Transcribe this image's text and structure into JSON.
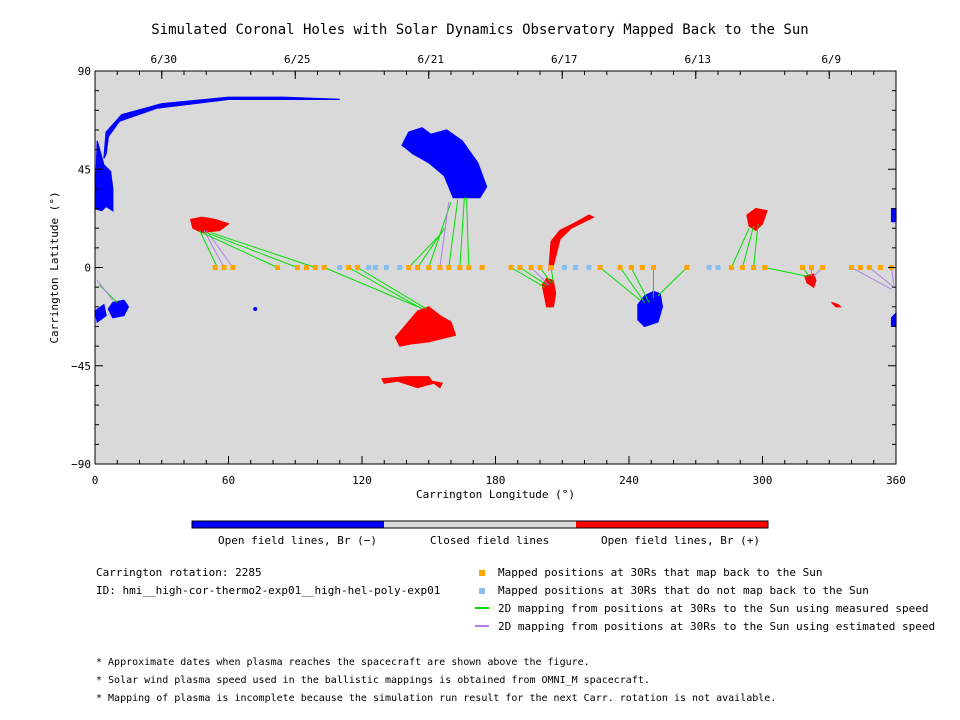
{
  "chart_data": {
    "type": "scatter",
    "title": "Simulated Coronal Holes with Solar Dynamics Observatory Mapped Back to the Sun",
    "xlabel": "Carrington Longitude (°)",
    "ylabel": "Carrington Latitude (°)",
    "xlim": [
      0,
      360
    ],
    "ylim": [
      -90,
      90
    ],
    "x_ticks": [
      "0",
      "60",
      "120",
      "180",
      "240",
      "300",
      "360"
    ],
    "y_ticks": [
      "90",
      "45",
      "0",
      "-45",
      "-90"
    ],
    "top_axis_dates": [
      {
        "label": "6/30",
        "x": 30
      },
      {
        "label": "6/25",
        "x": 90
      },
      {
        "label": "6/21",
        "x": 150
      },
      {
        "label": "6/17",
        "x": 210
      },
      {
        "label": "6/13",
        "x": 270
      },
      {
        "label": "6/9",
        "x": 330
      }
    ],
    "background_color": "#d9d9d9",
    "colors": {
      "open_negative": "#0000ff",
      "open_positive": "#ff0000",
      "closed": "#d9d9d9",
      "mapped_back": "#ffa500",
      "not_mapped": "#87bef0",
      "measured_speed": "#00e000",
      "estimated_speed": "#b080e8"
    },
    "coronal_holes": [
      {
        "polarity": "negative",
        "lon": 2,
        "lat": 40
      },
      {
        "polarity": "negative",
        "lon": 60,
        "lat": 78
      },
      {
        "polarity": "negative",
        "lon": 152,
        "lat": 52
      },
      {
        "polarity": "negative",
        "lon": 11,
        "lat": -19
      },
      {
        "polarity": "negative",
        "lon": 249,
        "lat": -20
      },
      {
        "polarity": "negative",
        "lon": 359,
        "lat": 24
      },
      {
        "polarity": "negative",
        "lon": 359,
        "lat": -24
      },
      {
        "polarity": "positive",
        "lon": 50,
        "lat": 19
      },
      {
        "polarity": "positive",
        "lon": 148,
        "lat": -27
      },
      {
        "polarity": "positive",
        "lon": 145,
        "lat": -52
      },
      {
        "polarity": "positive",
        "lon": 204,
        "lat": -13
      },
      {
        "polarity": "positive",
        "lon": 214,
        "lat": 14
      },
      {
        "polarity": "positive",
        "lon": 296,
        "lat": 22
      },
      {
        "polarity": "positive",
        "lon": 322,
        "lat": -6
      },
      {
        "polarity": "positive",
        "lon": 333,
        "lat": -17
      }
    ],
    "mapped_positions": [
      {
        "lon": 54,
        "mapped": true
      },
      {
        "lon": 58,
        "mapped": true
      },
      {
        "lon": 62,
        "mapped": true
      },
      {
        "lon": 82,
        "mapped": true
      },
      {
        "lon": 91,
        "mapped": true
      },
      {
        "lon": 95,
        "mapped": true
      },
      {
        "lon": 99,
        "mapped": true
      },
      {
        "lon": 103,
        "mapped": true
      },
      {
        "lon": 110,
        "mapped": false
      },
      {
        "lon": 114,
        "mapped": true
      },
      {
        "lon": 118,
        "mapped": true
      },
      {
        "lon": 123,
        "mapped": false
      },
      {
        "lon": 126,
        "mapped": false
      },
      {
        "lon": 131,
        "mapped": false
      },
      {
        "lon": 137,
        "mapped": false
      },
      {
        "lon": 141,
        "mapped": true
      },
      {
        "lon": 145,
        "mapped": true
      },
      {
        "lon": 150,
        "mapped": true
      },
      {
        "lon": 155,
        "mapped": true
      },
      {
        "lon": 159,
        "mapped": true
      },
      {
        "lon": 164,
        "mapped": true
      },
      {
        "lon": 168,
        "mapped": true
      },
      {
        "lon": 174,
        "mapped": true
      },
      {
        "lon": 187,
        "mapped": true
      },
      {
        "lon": 191,
        "mapped": true
      },
      {
        "lon": 196,
        "mapped": true
      },
      {
        "lon": 200,
        "mapped": true
      },
      {
        "lon": 205,
        "mapped": true
      },
      {
        "lon": 211,
        "mapped": false
      },
      {
        "lon": 216,
        "mapped": false
      },
      {
        "lon": 222,
        "mapped": false
      },
      {
        "lon": 227,
        "mapped": true
      },
      {
        "lon": 236,
        "mapped": true
      },
      {
        "lon": 241,
        "mapped": true
      },
      {
        "lon": 246,
        "mapped": true
      },
      {
        "lon": 251,
        "mapped": true
      },
      {
        "lon": 266,
        "mapped": true
      },
      {
        "lon": 276,
        "mapped": false
      },
      {
        "lon": 280,
        "mapped": false
      },
      {
        "lon": 286,
        "mapped": true
      },
      {
        "lon": 291,
        "mapped": true
      },
      {
        "lon": 296,
        "mapped": true
      },
      {
        "lon": 301,
        "mapped": true
      },
      {
        "lon": 318,
        "mapped": true
      },
      {
        "lon": 322,
        "mapped": true
      },
      {
        "lon": 327,
        "mapped": true
      },
      {
        "lon": 340,
        "mapped": true
      },
      {
        "lon": 344,
        "mapped": true
      },
      {
        "lon": 348,
        "mapped": true
      },
      {
        "lon": 353,
        "mapped": true
      },
      {
        "lon": 358,
        "mapped": true
      }
    ],
    "mappings": [
      {
        "from": [
          55,
          0
        ],
        "to": [
          47,
          17
        ],
        "speed": "measured"
      },
      {
        "from": [
          58,
          0
        ],
        "to": [
          49,
          17
        ],
        "speed": "estimated"
      },
      {
        "from": [
          62,
          0
        ],
        "to": [
          50,
          17
        ],
        "speed": "estimated"
      },
      {
        "from": [
          82,
          0
        ],
        "to": [
          48,
          16
        ],
        "speed": "measured"
      },
      {
        "from": [
          91,
          0
        ],
        "to": [
          50,
          16
        ],
        "speed": "measured"
      },
      {
        "from": [
          99,
          0
        ],
        "to": [
          52,
          16
        ],
        "speed": "measured"
      },
      {
        "from": [
          103,
          0
        ],
        "to": [
          145,
          -18
        ],
        "speed": "measured"
      },
      {
        "from": [
          114,
          0
        ],
        "to": [
          147,
          -19
        ],
        "speed": "measured"
      },
      {
        "from": [
          118,
          0
        ],
        "to": [
          149,
          -19
        ],
        "speed": "measured"
      },
      {
        "from": [
          141,
          0
        ],
        "to": [
          156,
          16
        ],
        "speed": "measured"
      },
      {
        "from": [
          145,
          0
        ],
        "to": [
          157,
          18
        ],
        "speed": "measured"
      },
      {
        "from": [
          150,
          0
        ],
        "to": [
          160,
          30
        ],
        "speed": "measured"
      },
      {
        "from": [
          155,
          0
        ],
        "to": [
          159,
          30
        ],
        "speed": "estimated"
      },
      {
        "from": [
          159,
          0
        ],
        "to": [
          163,
          31
        ],
        "speed": "measured"
      },
      {
        "from": [
          164,
          0
        ],
        "to": [
          166,
          32
        ],
        "speed": "measured"
      },
      {
        "from": [
          168,
          0
        ],
        "to": [
          167,
          32
        ],
        "speed": "measured"
      },
      {
        "from": [
          187,
          0
        ],
        "to": [
          202,
          -9
        ],
        "speed": "measured"
      },
      {
        "from": [
          191,
          0
        ],
        "to": [
          203,
          -8
        ],
        "speed": "measured"
      },
      {
        "from": [
          196,
          0
        ],
        "to": [
          204,
          -8
        ],
        "speed": "estimated"
      },
      {
        "from": [
          200,
          0
        ],
        "to": [
          205,
          -7
        ],
        "speed": "measured"
      },
      {
        "from": [
          205,
          0
        ],
        "to": [
          206,
          -7
        ],
        "speed": "measured"
      },
      {
        "from": [
          227,
          0
        ],
        "to": [
          245,
          -15
        ],
        "speed": "measured"
      },
      {
        "from": [
          236,
          0
        ],
        "to": [
          247,
          -16
        ],
        "speed": "measured"
      },
      {
        "from": [
          241,
          0
        ],
        "to": [
          249,
          -16
        ],
        "speed": "measured"
      },
      {
        "from": [
          251,
          0
        ],
        "to": [
          251,
          -14
        ],
        "speed": "measured"
      },
      {
        "from": [
          266,
          0
        ],
        "to": [
          253,
          -13
        ],
        "speed": "measured"
      },
      {
        "from": [
          286,
          0
        ],
        "to": [
          294,
          18
        ],
        "speed": "measured"
      },
      {
        "from": [
          291,
          0
        ],
        "to": [
          296,
          19
        ],
        "speed": "measured"
      },
      {
        "from": [
          296,
          0
        ],
        "to": [
          298,
          20
        ],
        "speed": "measured"
      },
      {
        "from": [
          301,
          0
        ],
        "to": [
          320,
          -4
        ],
        "speed": "measured"
      },
      {
        "from": [
          318,
          0
        ],
        "to": [
          321,
          -4
        ],
        "speed": "measured"
      },
      {
        "from": [
          322,
          0
        ],
        "to": [
          322,
          -4
        ],
        "speed": "estimated"
      },
      {
        "from": [
          327,
          0
        ],
        "to": [
          323,
          -4
        ],
        "speed": "estimated"
      },
      {
        "from": [
          340,
          0
        ],
        "to": [
          358,
          -10
        ],
        "speed": "estimated"
      },
      {
        "from": [
          348,
          0
        ],
        "to": [
          359,
          -9
        ],
        "speed": "estimated"
      },
      {
        "from": [
          358,
          0
        ],
        "to": [
          359,
          -8
        ],
        "speed": "estimated"
      },
      {
        "from": [
          2,
          -8
        ],
        "to": [
          10,
          -16
        ],
        "speed": "measured"
      },
      {
        "from": [
          1,
          -6
        ],
        "to": [
          8,
          -15
        ],
        "speed": "estimated"
      }
    ]
  },
  "colorbar": {
    "labels": [
      "Open field lines, Br (−)",
      "Closed field lines",
      "Open field lines, Br (+)"
    ]
  },
  "info": {
    "rotation": "Carrington rotation: 2285",
    "id": "ID: hmi__high-cor-thermo2-exp01__high-hel-poly-exp01"
  },
  "legend": [
    {
      "kind": "square",
      "color": "#ffa500",
      "label": "Mapped positions at 30Rs that map back to the Sun"
    },
    {
      "kind": "square",
      "color": "#87bef0",
      "label": "Mapped positions at 30Rs that do not map back to the Sun"
    },
    {
      "kind": "line",
      "color": "#00e000",
      "label": "2D mapping from positions at 30Rs to the Sun using measured speed"
    },
    {
      "kind": "line",
      "color": "#b080e8",
      "label": "2D mapping from positions at 30Rs to the Sun using estimated speed"
    }
  ],
  "notes": [
    "* Approximate dates when plasma reaches the spacecraft are shown above the figure.",
    "* Solar wind plasma speed used in the ballistic mappings is obtained from OMNI_M spacecraft.",
    "* Mapping of plasma is incomplete because the simulation run result for the next Carr. rotation is not available."
  ]
}
